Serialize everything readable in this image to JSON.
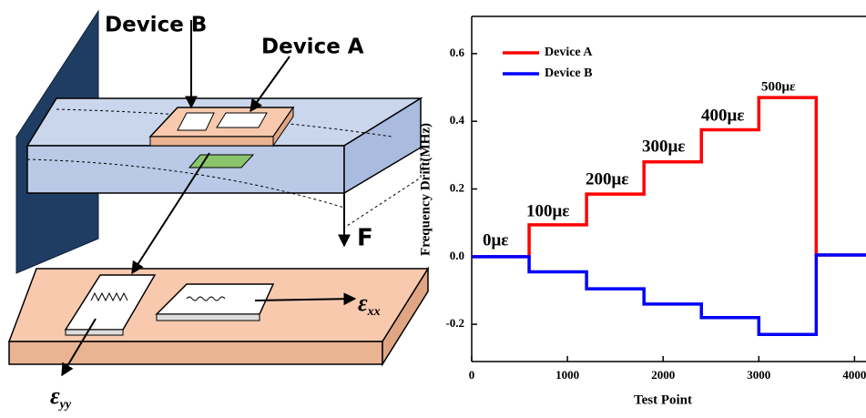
{
  "diagram": {
    "device_b": "Device B",
    "device_a": "Device A",
    "force": "F",
    "strain_xx": {
      "symbol": "ε",
      "subscript": "xx"
    },
    "strain_yy": {
      "symbol": "ε",
      "subscript": "yy"
    }
  },
  "chart_data": {
    "type": "line",
    "x_label": "Test Point",
    "y_label": "Frequency Drift(MHz)",
    "x": [
      0,
      600,
      600,
      1200,
      1200,
      1800,
      1800,
      2400,
      2400,
      3000,
      3000,
      3600,
      3600,
      4120
    ],
    "series": [
      {
        "name": "Device A",
        "color": "#ff0000",
        "values": [
          0,
          0,
          0.094,
          0.094,
          0.185,
          0.185,
          0.28,
          0.28,
          0.375,
          0.375,
          0.47,
          0.47,
          0.005,
          0.005
        ]
      },
      {
        "name": "Device B",
        "color": "#0000ff",
        "values": [
          0,
          0,
          -0.045,
          -0.045,
          -0.095,
          -0.095,
          -0.14,
          -0.14,
          -0.18,
          -0.18,
          -0.23,
          -0.23,
          0.005,
          0.005
        ]
      }
    ],
    "annotations": [
      "0με",
      "100με",
      "200με",
      "300με",
      "400με",
      "500με"
    ],
    "xlim": [
      0,
      4120
    ],
    "ylim": [
      -0.31,
      0.71
    ],
    "xticks": [
      0,
      1000,
      2000,
      3000,
      4000
    ],
    "yticks": [
      -0.2,
      {
        "value": 0,
        "label": "0.0"
      },
      0.2,
      0.4,
      0.6
    ],
    "legend": "upper-left",
    "grid": false
  }
}
